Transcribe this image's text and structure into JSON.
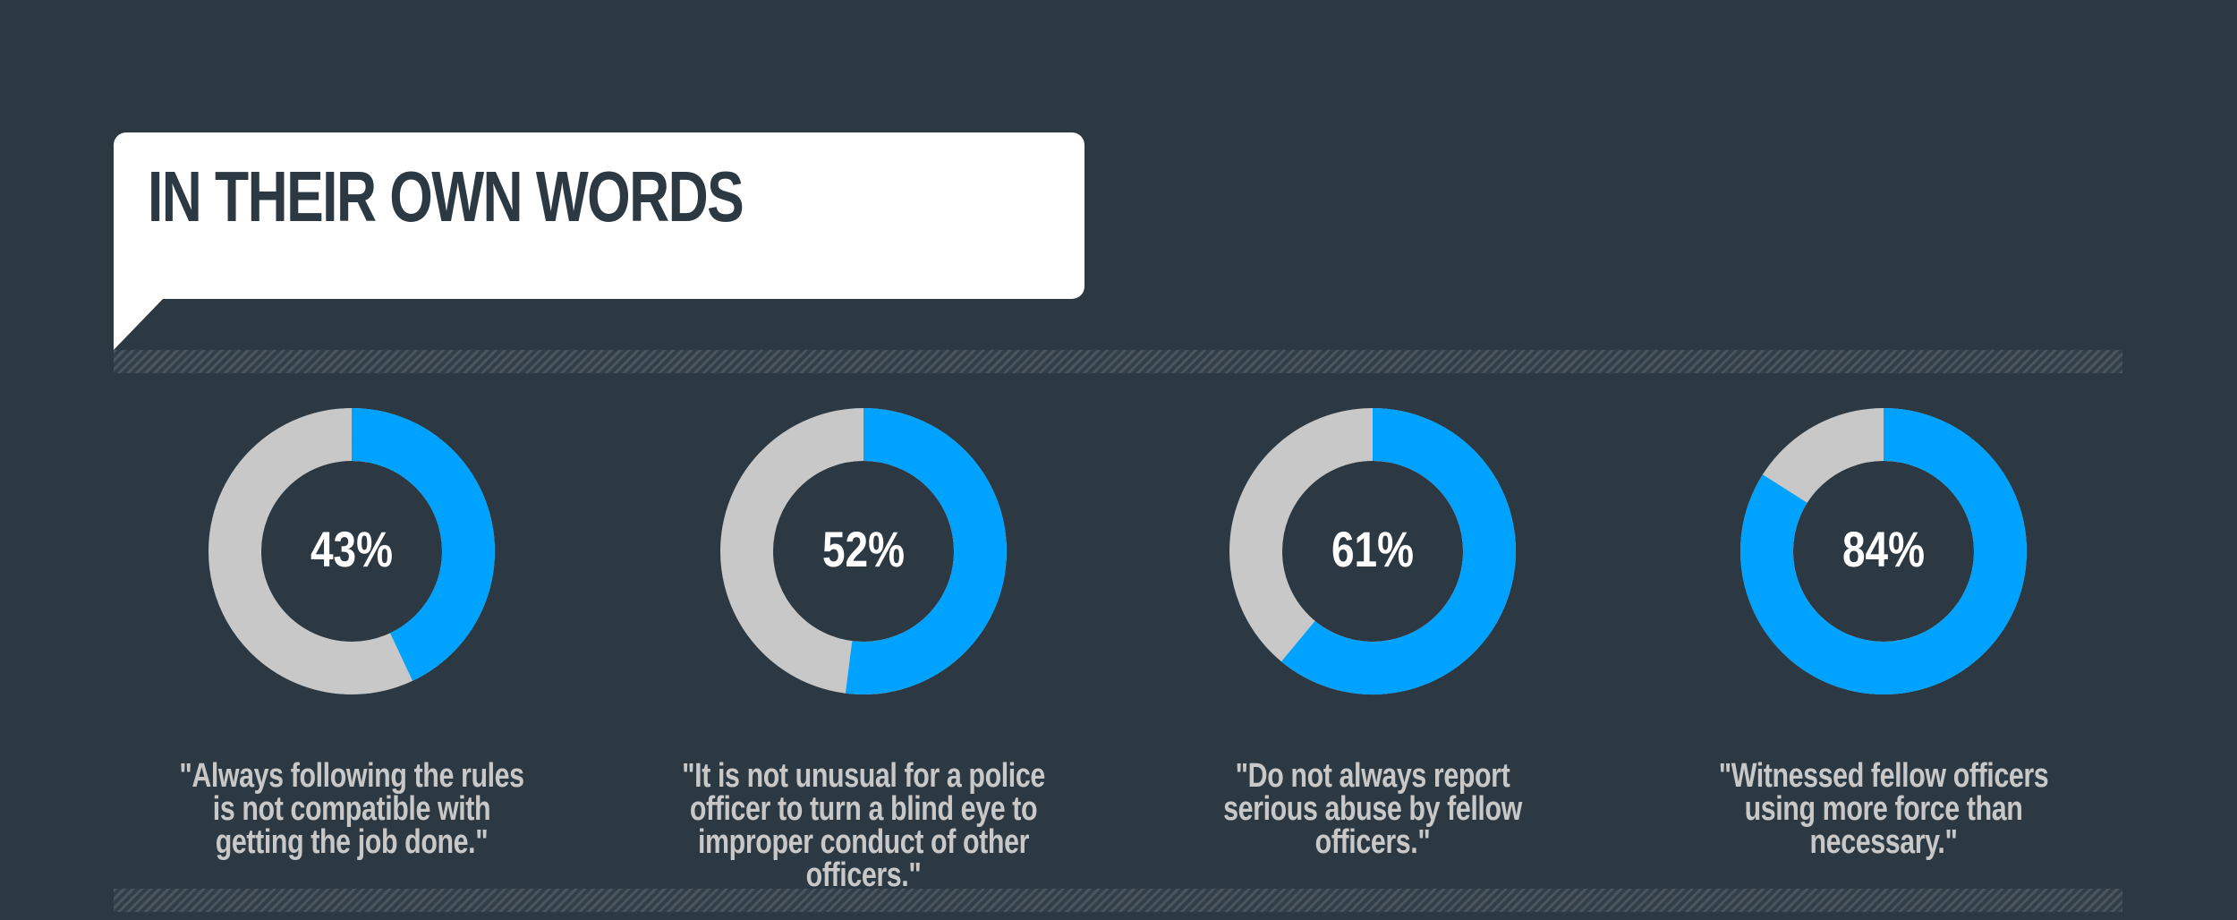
{
  "header": {
    "title": "IN THEIR OWN WORDS"
  },
  "colors": {
    "background": "#2d3942",
    "filled": "#00a2ff",
    "remaining": "#c8c8c8",
    "title_box": "#ffffff",
    "quote_text": "#c8c8c8"
  },
  "chart_data": {
    "type": "pie",
    "variant": "donut",
    "items": [
      {
        "value": 43,
        "label": "43%",
        "quote": "\"Always following the rules is not compatible with getting the job done.\""
      },
      {
        "value": 52,
        "label": "52%",
        "quote": "\"It is not unusual for a police officer to turn a blind eye to improper conduct of other officers.\""
      },
      {
        "value": 61,
        "label": "61%",
        "quote": "\"Do not always report serious abuse by fellow officers.\""
      },
      {
        "value": 84,
        "label": "84%",
        "quote": "\"Witnessed fellow officers using more force than necessary.\""
      }
    ]
  }
}
